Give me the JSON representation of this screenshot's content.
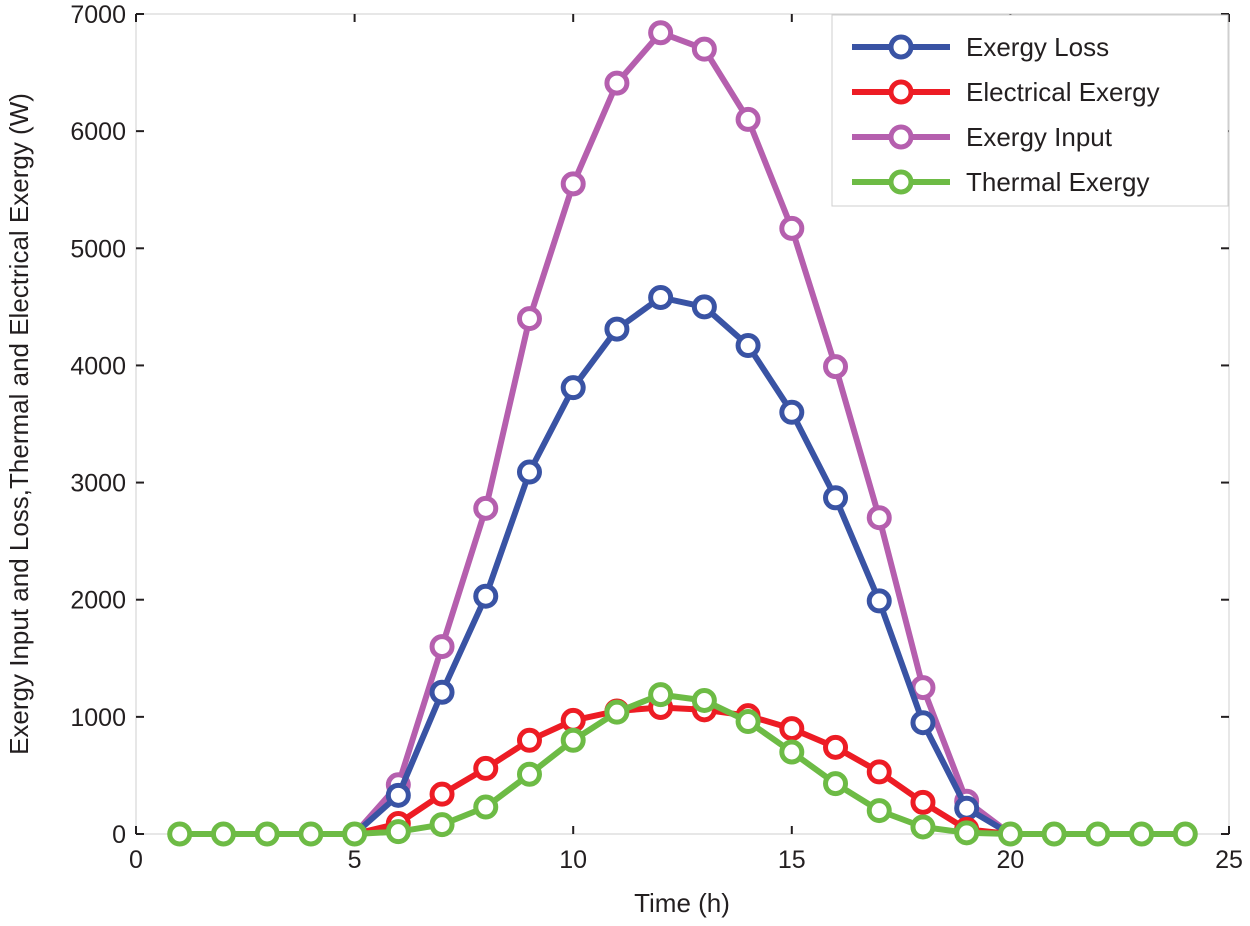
{
  "chart_data": {
    "type": "line",
    "title": "",
    "xlabel": "Time (h)",
    "ylabel": "Exergy Input and Loss,Thermal and Electrical Exergy (W)",
    "xlim": [
      0,
      25
    ],
    "ylim": [
      0,
      7000
    ],
    "xticks": [
      0,
      5,
      10,
      15,
      20,
      25
    ],
    "yticks": [
      0,
      1000,
      2000,
      3000,
      4000,
      5000,
      6000,
      7000
    ],
    "xtick_labels": [
      "0",
      "5",
      "10",
      "15",
      "20",
      "25"
    ],
    "ytick_labels": [
      "0",
      "1000",
      "2000",
      "3000",
      "4000",
      "5000",
      "6000",
      "7000"
    ],
    "grid": false,
    "legend_position": "top-right",
    "x": [
      1,
      2,
      3,
      4,
      5,
      6,
      7,
      8,
      9,
      10,
      11,
      12,
      13,
      14,
      15,
      16,
      17,
      18,
      19,
      20,
      21,
      22,
      23,
      24
    ],
    "series": [
      {
        "name": "Exergy Loss",
        "color": "#3953a4",
        "marker": "circle",
        "values": [
          null,
          null,
          null,
          null,
          null,
          330,
          1210,
          2030,
          3090,
          3810,
          4310,
          4580,
          4500,
          4170,
          3600,
          2870,
          1990,
          950,
          220,
          null,
          null,
          null,
          null,
          null
        ]
      },
      {
        "name": "Electrical Exergy",
        "color": "#ed1c24",
        "marker": "circle",
        "values": [
          null,
          null,
          null,
          null,
          null,
          90,
          340,
          560,
          800,
          970,
          1050,
          1080,
          1060,
          1010,
          900,
          740,
          530,
          270,
          40,
          null,
          null,
          null,
          null,
          null
        ]
      },
      {
        "name": "Exergy Input",
        "color": "#b55fae",
        "marker": "circle",
        "values": [
          null,
          null,
          null,
          null,
          null,
          420,
          1600,
          2780,
          4400,
          5550,
          6410,
          6840,
          6700,
          6100,
          5170,
          3990,
          2700,
          1250,
          280,
          null,
          null,
          null,
          null,
          null
        ]
      },
      {
        "name": "Thermal Exergy",
        "color": "#6dbb45",
        "marker": "circle",
        "values": [
          0,
          0,
          0,
          0,
          0,
          20,
          80,
          230,
          510,
          800,
          1040,
          1190,
          1140,
          960,
          700,
          430,
          200,
          60,
          10,
          0,
          0,
          0,
          0,
          0
        ]
      }
    ]
  }
}
